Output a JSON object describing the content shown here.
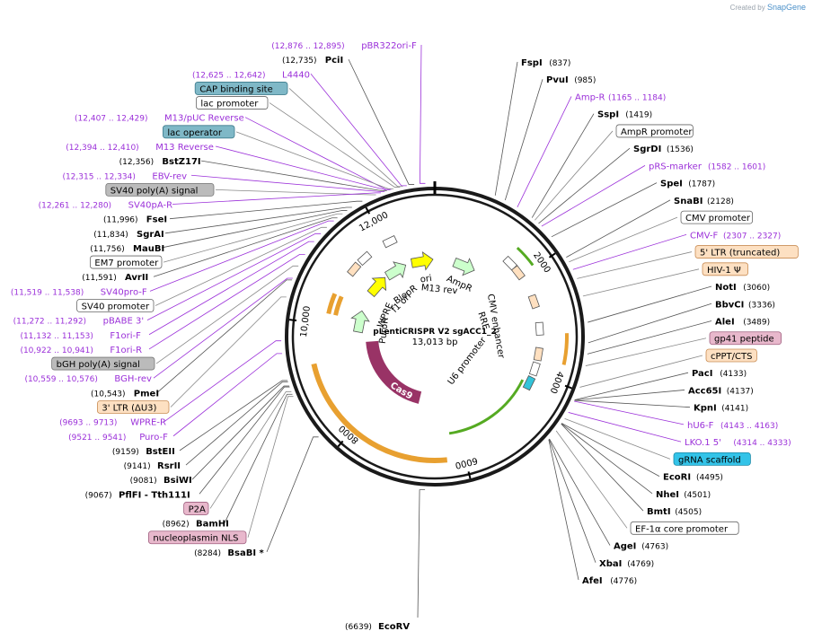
{
  "credit": {
    "prefix": "Created by",
    "brand": "SnapGene"
  },
  "map": {
    "name": "pLentiCRISPR V2 sgACC1_2",
    "length_label": "13,013 bp",
    "total_bp": 13013,
    "tick_labels": [
      "2000",
      "4000",
      "6000",
      "8000",
      "10,000",
      "12,000"
    ],
    "colors": {
      "enzyme_line": "#555555",
      "feature_line": "#9b30d9",
      "primer_text": "#9b30d9"
    }
  },
  "labels_right": [
    {
      "kind": "enzyme",
      "name": "FspI",
      "pos": "(837)",
      "bp": 837
    },
    {
      "kind": "enzyme",
      "name": "PvuI",
      "pos": "(985)",
      "bp": 985
    },
    {
      "kind": "primer",
      "name": "Amp-R",
      "pos": "(1165 .. 1184)",
      "bp": 1175
    },
    {
      "kind": "enzyme",
      "name": "SspI",
      "pos": "(1419)",
      "bp": 1419
    },
    {
      "kind": "feature",
      "name": "AmpR promoter",
      "style": "white",
      "bp": 1470
    },
    {
      "kind": "enzyme",
      "name": "SgrDI",
      "pos": "(1536)",
      "bp": 1536
    },
    {
      "kind": "primer",
      "name": "pRS-marker",
      "pos": "(1582 .. 1601)",
      "bp": 1592
    },
    {
      "kind": "enzyme",
      "name": "SpeI",
      "pos": "(1787)",
      "bp": 1787
    },
    {
      "kind": "enzyme",
      "name": "SnaBI",
      "pos": "(2128)",
      "bp": 2128
    },
    {
      "kind": "feature",
      "name": "CMV promoter",
      "style": "white",
      "bp": 2200
    },
    {
      "kind": "primer",
      "name": "CMV-F",
      "pos": "(2307 .. 2327)",
      "bp": 2317
    },
    {
      "kind": "feature",
      "name": "5' LTR (truncated)",
      "style": "peach",
      "bp": 2450
    },
    {
      "kind": "feature",
      "name": "HIV-1 Ψ",
      "style": "peach",
      "bp": 2700
    },
    {
      "kind": "enzyme",
      "name": "NotI",
      "pos": "(3060)",
      "bp": 3060
    },
    {
      "kind": "enzyme",
      "name": "BbvCI",
      "pos": "(3336)",
      "bp": 3336
    },
    {
      "kind": "enzyme",
      "name": "AleI",
      "pos": "(3489)",
      "bp": 3489
    },
    {
      "kind": "feature",
      "name": "gp41 peptide",
      "style": "pink",
      "bp": 3650
    },
    {
      "kind": "feature",
      "name": "cPPT/CTS",
      "style": "peach",
      "bp": 3950
    },
    {
      "kind": "enzyme",
      "name": "PacI",
      "pos": "(4133)",
      "bp": 4133
    },
    {
      "kind": "enzyme",
      "name": "Acc65I",
      "pos": "(4137)",
      "bp": 4137
    },
    {
      "kind": "enzyme",
      "name": "KpnI",
      "pos": "(4141)",
      "bp": 4141
    },
    {
      "kind": "primer",
      "name": "hU6-F",
      "pos": "(4143 .. 4163)",
      "bp": 4153
    },
    {
      "kind": "primer",
      "name": "LKO.1 5'",
      "pos": "(4314 .. 4333)",
      "bp": 4323
    },
    {
      "kind": "feature",
      "name": "gRNA scaffold",
      "style": "cyan",
      "bp": 4420
    },
    {
      "kind": "enzyme",
      "name": "EcoRI",
      "pos": "(4495)",
      "bp": 4495
    },
    {
      "kind": "enzyme",
      "name": "NheI",
      "pos": "(4501)",
      "bp": 4501
    },
    {
      "kind": "enzyme",
      "name": "BmtI",
      "pos": "(4505)",
      "bp": 4505
    },
    {
      "kind": "feature",
      "name": "EF-1α core promoter",
      "style": "white",
      "bp": 4620
    },
    {
      "kind": "enzyme",
      "name": "AgeI",
      "pos": "(4763)",
      "bp": 4763
    },
    {
      "kind": "enzyme",
      "name": "XbaI",
      "pos": "(4769)",
      "bp": 4769
    },
    {
      "kind": "enzyme",
      "name": "AfeI",
      "pos": "(4776)",
      "bp": 4776
    }
  ],
  "labels_left": [
    {
      "kind": "primer",
      "name": "pBR322ori-F",
      "pos": "(12,876 .. 12,895)",
      "bp": 12885
    },
    {
      "kind": "enzyme",
      "name": "PciI",
      "pos": "(12,735)",
      "bp": 12735
    },
    {
      "kind": "primer",
      "name": "L4440",
      "pos": "(12,625 .. 12,642)",
      "bp": 12633
    },
    {
      "kind": "feature",
      "name": "CAP binding site",
      "style": "teal",
      "bp": 12580
    },
    {
      "kind": "feature",
      "name": "lac promoter",
      "style": "white",
      "bp": 12540
    },
    {
      "kind": "primer",
      "name": "M13/pUC Reverse",
      "pos": "(12,407 .. 12,429)",
      "bp": 12418
    },
    {
      "kind": "feature",
      "name": "lac operator",
      "style": "teal",
      "bp": 12450
    },
    {
      "kind": "primer",
      "name": "M13 Reverse",
      "pos": "(12,394 .. 12,410)",
      "bp": 12402
    },
    {
      "kind": "enzyme",
      "name": "BstZ17I",
      "pos": "(12,356)",
      "bp": 12356
    },
    {
      "kind": "primer",
      "name": "EBV-rev",
      "pos": "(12,315 .. 12,334)",
      "bp": 12324
    },
    {
      "kind": "feature",
      "name": "SV40 poly(A) signal",
      "style": "gray",
      "bp": 12200
    },
    {
      "kind": "primer",
      "name": "SV40pA-R",
      "pos": "(12,261 .. 12,280)",
      "bp": 12270
    },
    {
      "kind": "enzyme",
      "name": "FseI",
      "pos": "(11,996)",
      "bp": 11996
    },
    {
      "kind": "enzyme",
      "name": "SgrAI",
      "pos": "(11,834)",
      "bp": 11834
    },
    {
      "kind": "enzyme",
      "name": "MauBI",
      "pos": "(11,756)",
      "bp": 11756
    },
    {
      "kind": "feature",
      "name": "EM7 promoter",
      "style": "white",
      "bp": 11680
    },
    {
      "kind": "enzyme",
      "name": "AvrII",
      "pos": "(11,591)",
      "bp": 11591
    },
    {
      "kind": "primer",
      "name": "SV40pro-F",
      "pos": "(11,519 .. 11,538)",
      "bp": 11528
    },
    {
      "kind": "feature",
      "name": "SV40 promoter",
      "style": "white",
      "bp": 11400
    },
    {
      "kind": "primer",
      "name": "pBABE 3'",
      "pos": "(11,272 .. 11,292)",
      "bp": 11282
    },
    {
      "kind": "primer",
      "name": "F1ori-F",
      "pos": "(11,132 .. 11,153)",
      "bp": 11142
    },
    {
      "kind": "primer",
      "name": "F1ori-R",
      "pos": "(10,922 .. 10,941)",
      "bp": 10931
    },
    {
      "kind": "feature",
      "name": "bGH poly(A) signal",
      "style": "gray",
      "bp": 10750
    },
    {
      "kind": "primer",
      "name": "BGH-rev",
      "pos": "(10,559 .. 10,576)",
      "bp": 10567
    },
    {
      "kind": "enzyme",
      "name": "PmeI",
      "pos": "(10,543)",
      "bp": 10543
    },
    {
      "kind": "feature",
      "name": "3' LTR (ΔU3)",
      "style": "peach",
      "bp": 10300
    },
    {
      "kind": "primer",
      "name": "WPRE-R",
      "pos": "(9693 .. 9713)",
      "bp": 9703
    },
    {
      "kind": "primer",
      "name": "Puro-F",
      "pos": "(9521 .. 9541)",
      "bp": 9531
    },
    {
      "kind": "enzyme",
      "name": "BstEII",
      "pos": "(9159)",
      "bp": 9159
    },
    {
      "kind": "enzyme",
      "name": "RsrII",
      "pos": "(9141)",
      "bp": 9141
    },
    {
      "kind": "enzyme",
      "name": "BsiWI",
      "pos": "(9081)",
      "bp": 9081
    },
    {
      "kind": "enzyme",
      "name": "PflFI - Tth111I",
      "pos": "(9067)",
      "bp": 9067
    },
    {
      "kind": "feature",
      "name": "P2A",
      "style": "pink",
      "bp": 9000
    },
    {
      "kind": "enzyme",
      "name": "BamHI",
      "pos": "(8962)",
      "bp": 8962
    },
    {
      "kind": "feature",
      "name": "nucleoplasmin NLS",
      "style": "pink",
      "bp": 8930
    },
    {
      "kind": "enzyme",
      "name": "BsaBI *",
      "pos": "(8284)",
      "bp": 8284
    },
    {
      "kind": "enzyme",
      "name": "EcoRV",
      "pos": "(6639)",
      "bp": 6639
    }
  ],
  "inner_features": [
    {
      "name": "ori",
      "color": "#ffff00",
      "start": 12400,
      "end": 11900
    },
    {
      "name": "AmpR",
      "color": "#ccffcc",
      "start": 1600,
      "end": 900
    },
    {
      "name": "M13 rev",
      "color": "#aaaaaa",
      "start": 12450,
      "end": 12420
    },
    {
      "name": "BleoR",
      "color": "#ccffcc",
      "start": 11950,
      "end": 11700
    },
    {
      "name": "f1 ori",
      "color": "#bbbbbb",
      "start": 11350,
      "end": 11150
    },
    {
      "name": "WPRE",
      "color": "#ffffff",
      "start": 10800,
      "end": 10200
    },
    {
      "name": "PuroR",
      "color": "#ccffcc",
      "start": 9900,
      "end": 9350
    },
    {
      "name": "Cas9",
      "color": "#993366",
      "start": 8950,
      "end": 4800
    },
    {
      "name": "U6 promoter",
      "color": "#ffffff",
      "start": 3900,
      "end": 4150
    },
    {
      "name": "CMV enhancer",
      "color": "#ffffff",
      "start": 1800,
      "end": 2200
    },
    {
      "name": "RRE",
      "color": "#ffffff",
      "start": 3100,
      "end": 3350
    }
  ],
  "inner_texts": [
    "ori",
    "M13 rev",
    "AmpR",
    "BleoR",
    "f1 ori",
    "WPRE",
    "PuroR",
    "CMV enhancer",
    "RRE",
    "U6 promoter",
    "Cas9"
  ]
}
